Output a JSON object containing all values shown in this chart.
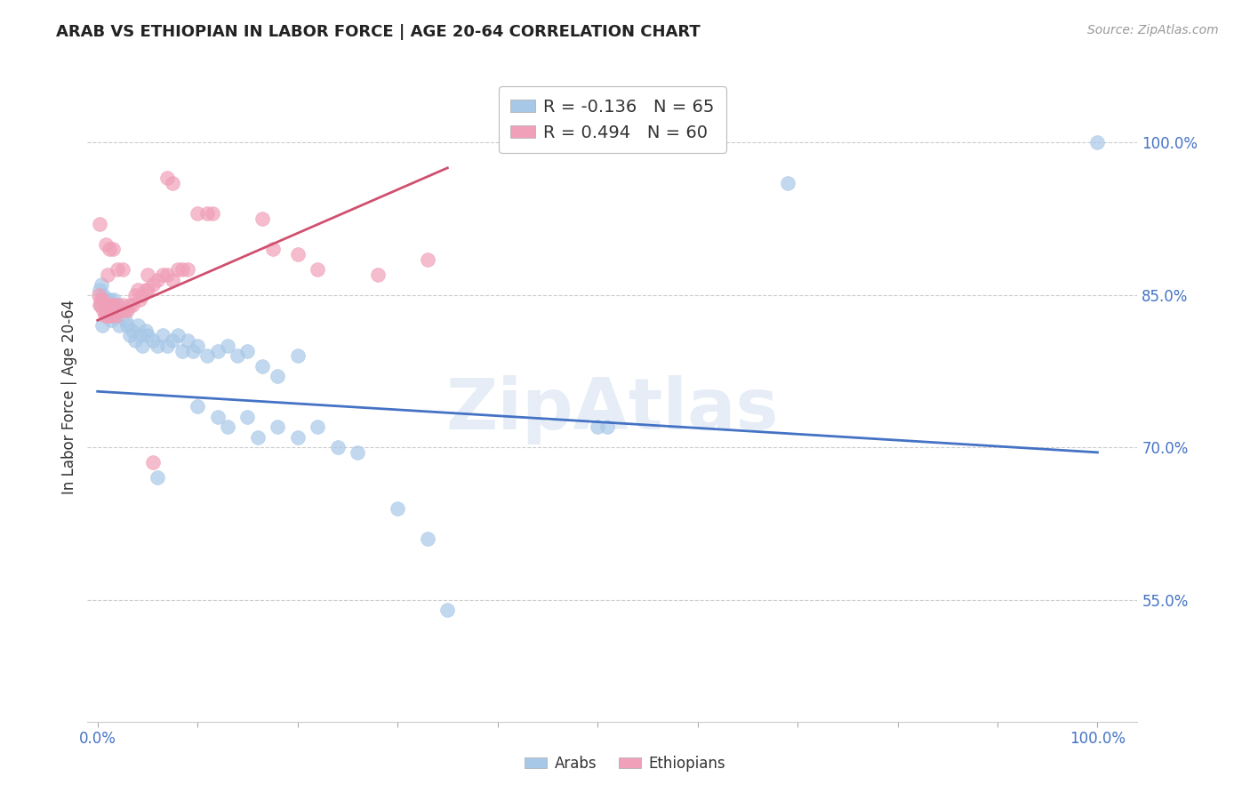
{
  "title": "ARAB VS ETHIOPIAN IN LABOR FORCE | AGE 20-64 CORRELATION CHART",
  "source": "Source: ZipAtlas.com",
  "ylabel": "In Labor Force | Age 20-64",
  "ytick_vals": [
    1.0,
    0.85,
    0.7,
    0.55
  ],
  "ytick_labels": [
    "100.0%",
    "85.0%",
    "70.0%",
    "55.0%"
  ],
  "xtick_vals": [
    0.0,
    1.0
  ],
  "xtick_labels": [
    "0.0%",
    "100.0%"
  ],
  "legend_arab_r": "-0.136",
  "legend_arab_n": "65",
  "legend_eth_r": "0.494",
  "legend_eth_n": "60",
  "arab_color": "#A8C8E8",
  "eth_color": "#F0A0B8",
  "arab_line_color": "#4472C4",
  "eth_line_color": "#D05070",
  "arab_line_x": [
    0.0,
    1.0
  ],
  "arab_line_y": [
    0.755,
    0.695
  ],
  "eth_line_x": [
    0.0,
    0.35
  ],
  "eth_line_y": [
    0.825,
    0.975
  ],
  "arab_points": [
    [
      0.002,
      0.855
    ],
    [
      0.003,
      0.84
    ],
    [
      0.004,
      0.86
    ],
    [
      0.005,
      0.82
    ],
    [
      0.006,
      0.85
    ],
    [
      0.007,
      0.845
    ],
    [
      0.008,
      0.835
    ],
    [
      0.009,
      0.84
    ],
    [
      0.01,
      0.845
    ],
    [
      0.011,
      0.83
    ],
    [
      0.012,
      0.845
    ],
    [
      0.013,
      0.84
    ],
    [
      0.014,
      0.825
    ],
    [
      0.015,
      0.83
    ],
    [
      0.016,
      0.845
    ],
    [
      0.018,
      0.835
    ],
    [
      0.02,
      0.84
    ],
    [
      0.022,
      0.82
    ],
    [
      0.025,
      0.835
    ],
    [
      0.028,
      0.825
    ],
    [
      0.03,
      0.82
    ],
    [
      0.032,
      0.81
    ],
    [
      0.035,
      0.815
    ],
    [
      0.038,
      0.805
    ],
    [
      0.04,
      0.82
    ],
    [
      0.043,
      0.81
    ],
    [
      0.045,
      0.8
    ],
    [
      0.048,
      0.815
    ],
    [
      0.05,
      0.81
    ],
    [
      0.055,
      0.805
    ],
    [
      0.06,
      0.8
    ],
    [
      0.065,
      0.81
    ],
    [
      0.07,
      0.8
    ],
    [
      0.075,
      0.805
    ],
    [
      0.08,
      0.81
    ],
    [
      0.085,
      0.795
    ],
    [
      0.09,
      0.805
    ],
    [
      0.095,
      0.795
    ],
    [
      0.1,
      0.8
    ],
    [
      0.11,
      0.79
    ],
    [
      0.12,
      0.795
    ],
    [
      0.13,
      0.8
    ],
    [
      0.14,
      0.79
    ],
    [
      0.15,
      0.795
    ],
    [
      0.165,
      0.78
    ],
    [
      0.18,
      0.77
    ],
    [
      0.2,
      0.79
    ],
    [
      0.06,
      0.67
    ],
    [
      0.1,
      0.74
    ],
    [
      0.12,
      0.73
    ],
    [
      0.13,
      0.72
    ],
    [
      0.15,
      0.73
    ],
    [
      0.16,
      0.71
    ],
    [
      0.18,
      0.72
    ],
    [
      0.2,
      0.71
    ],
    [
      0.22,
      0.72
    ],
    [
      0.24,
      0.7
    ],
    [
      0.26,
      0.695
    ],
    [
      0.3,
      0.64
    ],
    [
      0.33,
      0.61
    ],
    [
      0.35,
      0.54
    ],
    [
      0.5,
      0.72
    ],
    [
      0.51,
      0.72
    ],
    [
      0.69,
      0.96
    ],
    [
      1.0,
      1.0
    ]
  ],
  "eth_points": [
    [
      0.001,
      0.85
    ],
    [
      0.002,
      0.84
    ],
    [
      0.003,
      0.845
    ],
    [
      0.004,
      0.84
    ],
    [
      0.005,
      0.845
    ],
    [
      0.006,
      0.835
    ],
    [
      0.007,
      0.83
    ],
    [
      0.008,
      0.835
    ],
    [
      0.009,
      0.84
    ],
    [
      0.01,
      0.83
    ],
    [
      0.011,
      0.84
    ],
    [
      0.012,
      0.835
    ],
    [
      0.013,
      0.84
    ],
    [
      0.014,
      0.83
    ],
    [
      0.015,
      0.84
    ],
    [
      0.016,
      0.835
    ],
    [
      0.017,
      0.835
    ],
    [
      0.018,
      0.835
    ],
    [
      0.019,
      0.83
    ],
    [
      0.02,
      0.84
    ],
    [
      0.022,
      0.835
    ],
    [
      0.025,
      0.84
    ],
    [
      0.028,
      0.835
    ],
    [
      0.03,
      0.835
    ],
    [
      0.032,
      0.84
    ],
    [
      0.035,
      0.84
    ],
    [
      0.038,
      0.85
    ],
    [
      0.04,
      0.855
    ],
    [
      0.042,
      0.845
    ],
    [
      0.045,
      0.85
    ],
    [
      0.048,
      0.855
    ],
    [
      0.05,
      0.855
    ],
    [
      0.055,
      0.86
    ],
    [
      0.06,
      0.865
    ],
    [
      0.065,
      0.87
    ],
    [
      0.07,
      0.87
    ],
    [
      0.075,
      0.865
    ],
    [
      0.08,
      0.875
    ],
    [
      0.085,
      0.875
    ],
    [
      0.09,
      0.875
    ],
    [
      0.002,
      0.92
    ],
    [
      0.008,
      0.9
    ],
    [
      0.012,
      0.895
    ],
    [
      0.015,
      0.895
    ],
    [
      0.01,
      0.87
    ],
    [
      0.02,
      0.875
    ],
    [
      0.025,
      0.875
    ],
    [
      0.05,
      0.87
    ],
    [
      0.055,
      0.685
    ],
    [
      0.1,
      0.93
    ],
    [
      0.11,
      0.93
    ],
    [
      0.115,
      0.93
    ],
    [
      0.07,
      0.965
    ],
    [
      0.075,
      0.96
    ],
    [
      0.165,
      0.925
    ],
    [
      0.175,
      0.895
    ],
    [
      0.2,
      0.89
    ],
    [
      0.22,
      0.875
    ],
    [
      0.28,
      0.87
    ],
    [
      0.33,
      0.885
    ]
  ]
}
